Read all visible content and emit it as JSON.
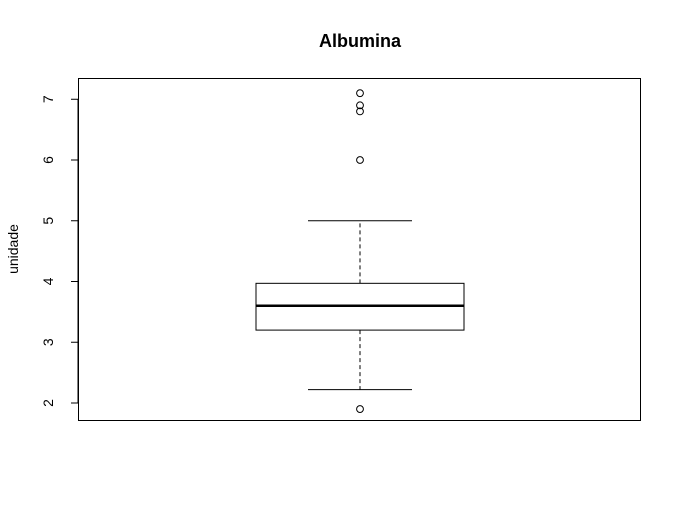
{
  "chart_data": {
    "type": "boxplot",
    "title": "Albumina",
    "xlabel": "",
    "ylabel": "unidade",
    "ylim": [
      1.72,
      7.35
    ],
    "yticks": [
      2,
      3,
      4,
      5,
      6,
      7
    ],
    "grid": false,
    "box": {
      "whisker_low": 2.22,
      "q1": 3.2,
      "median": 3.6,
      "q3": 3.97,
      "whisker_high": 5.0
    },
    "outliers": [
      1.9,
      6.0,
      6.8,
      6.9,
      7.1
    ]
  }
}
